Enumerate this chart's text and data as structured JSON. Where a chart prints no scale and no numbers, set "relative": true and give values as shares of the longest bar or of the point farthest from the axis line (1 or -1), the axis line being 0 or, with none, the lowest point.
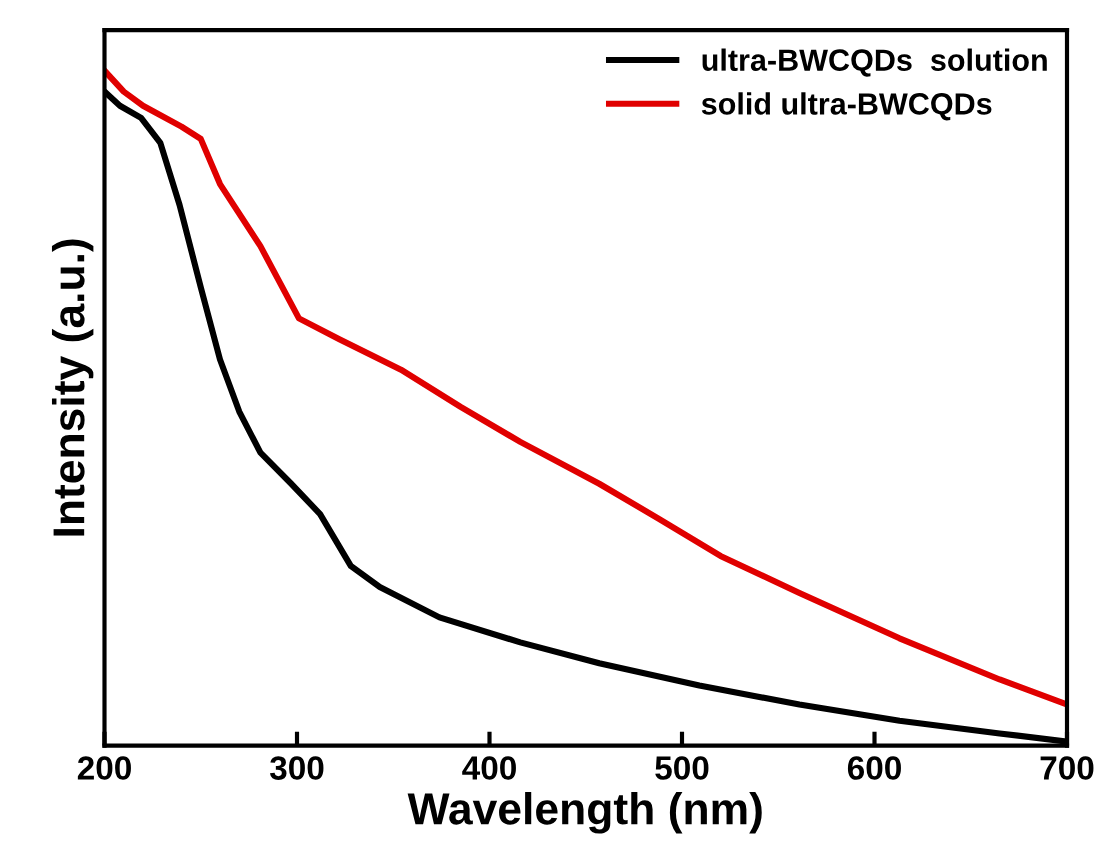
{
  "chart_data": {
    "type": "line",
    "xlabel": "Wavelength (nm)",
    "ylabel": "Intensity (a.u.)",
    "relative": true,
    "xlim": [
      200,
      700
    ],
    "xticks": [
      200,
      300,
      400,
      500,
      600,
      700
    ],
    "tick_labels": "x",
    "legend": "top right",
    "marker": "none",
    "line_style": "solid",
    "series": [
      {
        "name": "ultra-BWCQDs  solution",
        "color": "#000000",
        "x": [
          200,
          208,
          219,
          229,
          239,
          250,
          260,
          270,
          281,
          297,
          312,
          328,
          343,
          374,
          416,
          457,
          509,
          561,
          613,
          665,
          700
        ],
        "values": [
          0.969,
          0.948,
          0.93,
          0.893,
          0.801,
          0.679,
          0.572,
          0.495,
          0.434,
          0.388,
          0.343,
          0.266,
          0.235,
          0.19,
          0.153,
          0.122,
          0.089,
          0.061,
          0.037,
          0.018,
          0.006
        ]
      },
      {
        "name": "solid ultra-BWCQDs",
        "color": "#e00000",
        "x": [
          200,
          210,
          220,
          240,
          250,
          260,
          281,
          301,
          322,
          354,
          385,
          416,
          457,
          488,
          520,
          561,
          613,
          665,
          700
        ],
        "values": [
          1.0,
          0.969,
          0.948,
          0.917,
          0.899,
          0.832,
          0.74,
          0.633,
          0.602,
          0.557,
          0.502,
          0.45,
          0.388,
          0.336,
          0.281,
          0.226,
          0.159,
          0.098,
          0.061
        ]
      }
    ]
  }
}
